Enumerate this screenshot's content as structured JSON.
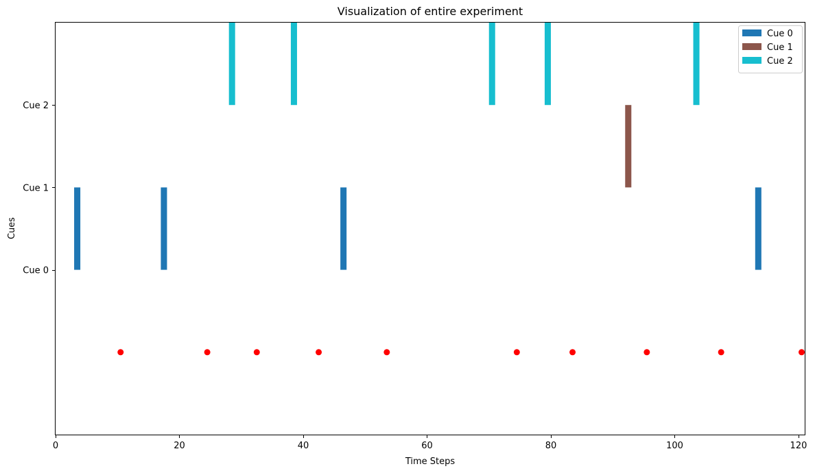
{
  "chart_data": {
    "type": "bar",
    "title": "Visualization of entire experiment",
    "xlabel": "Time Steps",
    "ylabel": "Cues",
    "xlim": [
      0,
      121
    ],
    "ylim": [
      -2,
      3
    ],
    "xticks": [
      0,
      20,
      40,
      60,
      80,
      100,
      120
    ],
    "yticks": [
      {
        "value": 0,
        "label": "Cue 0"
      },
      {
        "value": 1,
        "label": "Cue 1"
      },
      {
        "value": 2,
        "label": "Cue 2"
      }
    ],
    "grid": false,
    "legend_position": "top-right",
    "bar_width": 1,
    "series": [
      {
        "name": "Cue 0",
        "color": "#1f77b4",
        "y_base": 0,
        "height": 1,
        "x": [
          3.5,
          17.5,
          46.5,
          113.5
        ]
      },
      {
        "name": "Cue 1",
        "color": "#8c564b",
        "y_base": 1,
        "height": 1,
        "x": [
          92.5
        ]
      },
      {
        "name": "Cue 2",
        "color": "#17becf",
        "y_base": 2,
        "height": 1,
        "x": [
          28.5,
          38.5,
          70.5,
          79.5,
          103.5
        ]
      }
    ],
    "markers": {
      "color": "#ff0000",
      "y": -1,
      "x": [
        10.5,
        24.5,
        32.5,
        42.5,
        53.5,
        74.5,
        83.5,
        95.5,
        107.5,
        120.5
      ]
    }
  }
}
